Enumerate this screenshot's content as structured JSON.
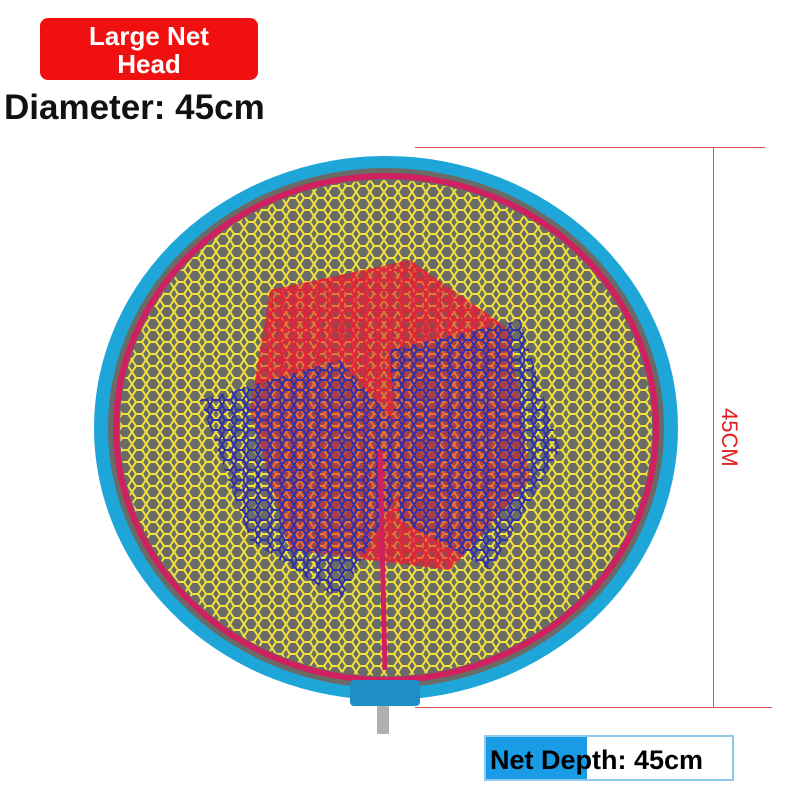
{
  "badge": {
    "line1": "Large Net",
    "line2": "Head"
  },
  "diameter_label": "Diameter: 45cm",
  "dimension_label": "45CM",
  "depth_label": "Net Depth: 45cm",
  "colors": {
    "badge": "#f01010",
    "rim": "#1fa6d9",
    "dimension": "#e02020",
    "depth_fill": "#1a9be6"
  }
}
